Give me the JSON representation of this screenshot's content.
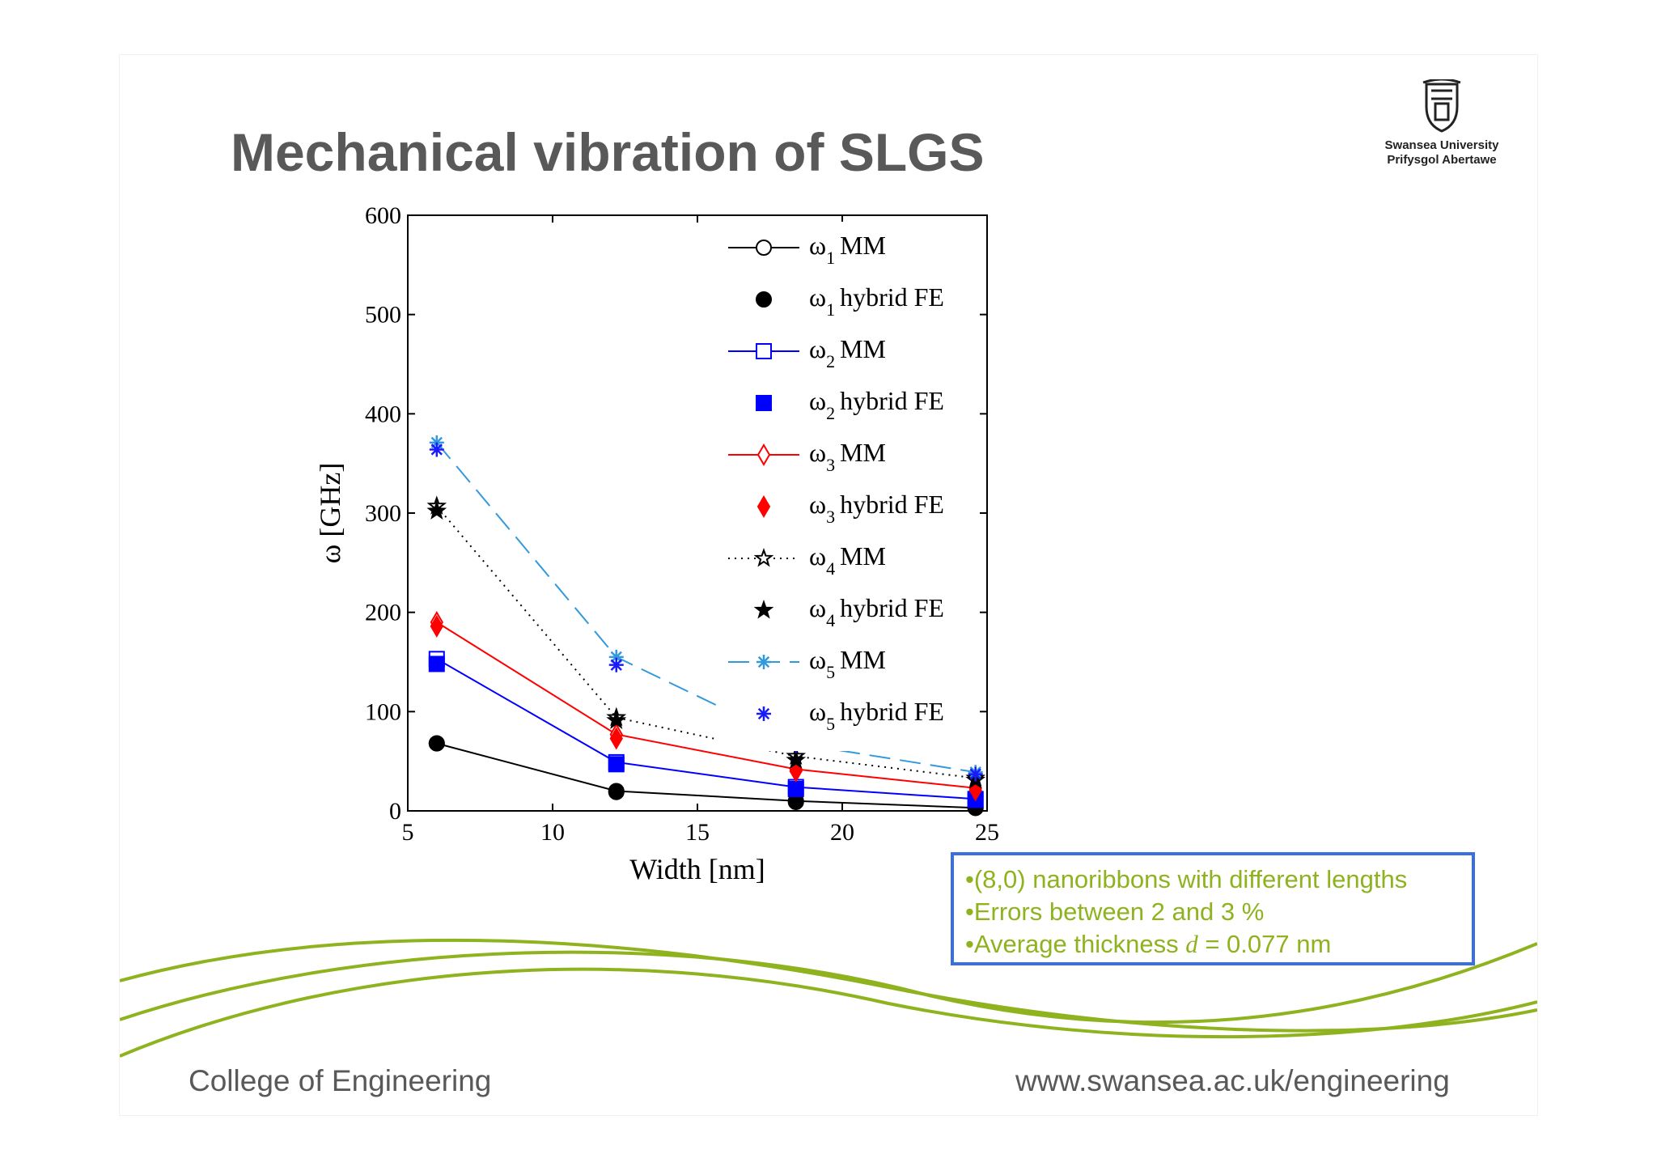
{
  "slide": {
    "title": "Mechanical vibration of SLGS",
    "logo": {
      "line1": "Swansea University",
      "line2": "Prifysgol Abertawe"
    },
    "footer_left": "College of Engineering",
    "footer_right": "www.swansea.ac.uk/engineering",
    "notes": [
      {
        "text": "•(8,0) nanoribbons with different lengths"
      },
      {
        "text": "•Errors between 2 and 3 %"
      },
      {
        "prefix": "•Average thickness ",
        "var": "d",
        "suffix": " = 0.077 nm"
      }
    ],
    "accent_color": "#8fb21f",
    "box_border_color": "#3a6fe0"
  },
  "chart_data": {
    "type": "line",
    "xlabel": "Width [nm]",
    "ylabel": "ω [GHz]",
    "xlim": [
      5,
      25
    ],
    "ylim": [
      0,
      600
    ],
    "xticks": [
      5,
      10,
      15,
      20,
      25
    ],
    "yticks": [
      0,
      100,
      200,
      300,
      400,
      500,
      600
    ],
    "grid": false,
    "legend_position": "top-right",
    "x": [
      6.0,
      12.2,
      18.4,
      24.6
    ],
    "series": [
      {
        "name": "ω1 MM",
        "symbol": "ω",
        "sub": "1",
        "label": "MM",
        "values": [
          68,
          20,
          10,
          3
        ],
        "color": "#000000",
        "marker": "circle-open",
        "line": "solid"
      },
      {
        "name": "ω1 hybrid FE",
        "symbol": "ω",
        "sub": "1",
        "label": "hybrid FE",
        "values": [
          68,
          19,
          9,
          3
        ],
        "color": "#000000",
        "marker": "circle-filled",
        "line": "none"
      },
      {
        "name": "ω2 MM",
        "symbol": "ω",
        "sub": "2",
        "label": "MM",
        "values": [
          153,
          49,
          24,
          12
        ],
        "color": "#0000ff",
        "marker": "square-open",
        "line": "solid"
      },
      {
        "name": "ω2 hybrid FE",
        "symbol": "ω",
        "sub": "2",
        "label": "hybrid FE",
        "values": [
          148,
          47,
          22,
          11
        ],
        "color": "#0000ff",
        "marker": "square-filled",
        "line": "none"
      },
      {
        "name": "ω3 MM",
        "symbol": "ω",
        "sub": "3",
        "label": "MM",
        "values": [
          190,
          77,
          42,
          23
        ],
        "color": "#ff0000",
        "marker": "diamond-open",
        "line": "solid"
      },
      {
        "name": "ω3 hybrid FE",
        "symbol": "ω",
        "sub": "3",
        "label": "hybrid FE",
        "values": [
          186,
          73,
          40,
          21
        ],
        "color": "#ff0000",
        "marker": "diamond-filled",
        "line": "none"
      },
      {
        "name": "ω4 MM",
        "symbol": "ω",
        "sub": "4",
        "label": "MM",
        "values": [
          307,
          94,
          55,
          33
        ],
        "color": "#000000",
        "marker": "star-open",
        "line": "dotted"
      },
      {
        "name": "ω4 hybrid FE",
        "symbol": "ω",
        "sub": "4",
        "label": "hybrid FE",
        "values": [
          302,
          91,
          51,
          31
        ],
        "color": "#000000",
        "marker": "star-filled",
        "line": "none"
      },
      {
        "name": "ω5 MM",
        "symbol": "ω",
        "sub": "5",
        "label": "MM",
        "values": [
          371,
          155,
          68,
          39
        ],
        "color": "#3399dd",
        "marker": "asterisk",
        "line": "dashed"
      },
      {
        "name": "ω5 hybrid FE",
        "symbol": "ω",
        "sub": "5",
        "label": "hybrid FE",
        "values": [
          364,
          147,
          66,
          37
        ],
        "color": "#1a1aff",
        "marker": "asterisk",
        "line": "none"
      }
    ]
  }
}
